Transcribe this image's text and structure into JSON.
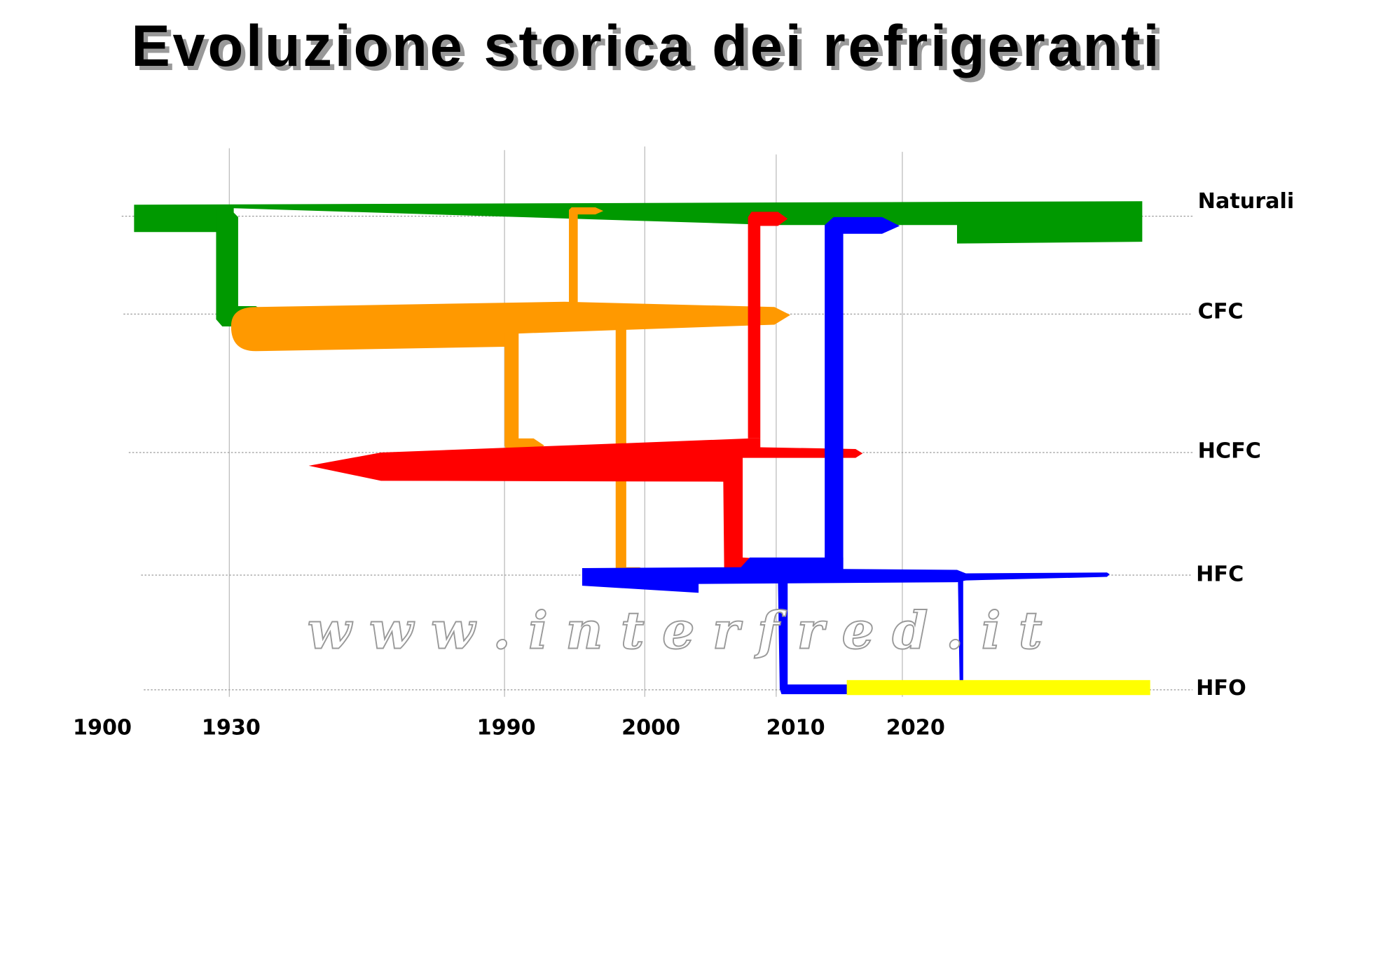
{
  "title": "Evoluzione storica dei refrigeranti",
  "rows": [
    "Naturali",
    "CFC",
    "HCFC",
    "HFC",
    "HFO"
  ],
  "years": [
    "1900",
    "1930",
    "1990",
    "2000",
    "2010",
    "2020"
  ],
  "watermark": "w w w . i n t e r f r e d . i t"
}
